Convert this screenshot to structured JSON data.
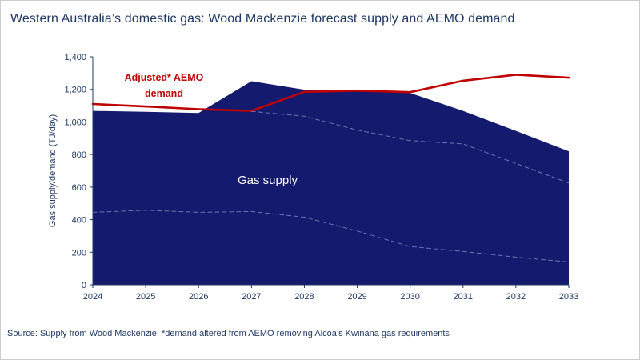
{
  "header": {
    "title": "Western Australia’s domestic gas: Wood Mackenzie forecast supply and AEMO demand"
  },
  "annotations": {
    "demand_label": "Adjusted* AEMO demand",
    "supply_label": "Gas supply"
  },
  "footer": {
    "source_note": "Source: Supply from Wood Mackenzie, *demand altered from AEMO removing Alcoa’s Kwinana gas requirements"
  },
  "colors": {
    "supply_area": "#141a6e",
    "demand_line": "#c00000",
    "axis_text": "#1f3864",
    "dashed_component": "#7c86b8"
  },
  "chart_data": {
    "type": "area",
    "title": "Western Australia’s domestic gas: Wood Mackenzie forecast supply and AEMO demand",
    "xlabel": "",
    "ylabel": "Gas supply/demand (TJ/day)",
    "xlim": [
      2024,
      2033
    ],
    "ylim": [
      0,
      1400
    ],
    "yticks": [
      0,
      200,
      400,
      600,
      800,
      1000,
      1200,
      1400
    ],
    "grid": false,
    "legend": "none (labels annotated directly on chart)",
    "x": [
      2024,
      2025,
      2026,
      2027,
      2028,
      2029,
      2030,
      2031,
      2032,
      2033
    ],
    "series": [
      {
        "name": "Gas supply",
        "type": "area",
        "color": "#141a6e",
        "values": [
          1068,
          1062,
          1055,
          1250,
          1198,
          1190,
          1178,
          1068,
          945,
          820
        ]
      },
      {
        "name": "Adjusted* AEMO demand",
        "type": "line",
        "color": "#c00000",
        "values": [
          1110,
          1095,
          1078,
          1068,
          1185,
          1192,
          1183,
          1253,
          1290,
          1272
        ]
      },
      {
        "name": "Supply sub-component (unlabelled, dashed, upper)",
        "type": "line",
        "dashed": true,
        "color": "#7c86b8",
        "values": [
          null,
          null,
          null,
          1065,
          1035,
          950,
          885,
          865,
          745,
          625
        ]
      },
      {
        "name": "Supply sub-component (unlabelled, dashed, lower)",
        "type": "line",
        "dashed": true,
        "color": "#7c86b8",
        "values": [
          445,
          458,
          445,
          450,
          415,
          330,
          235,
          205,
          170,
          140
        ]
      }
    ]
  }
}
